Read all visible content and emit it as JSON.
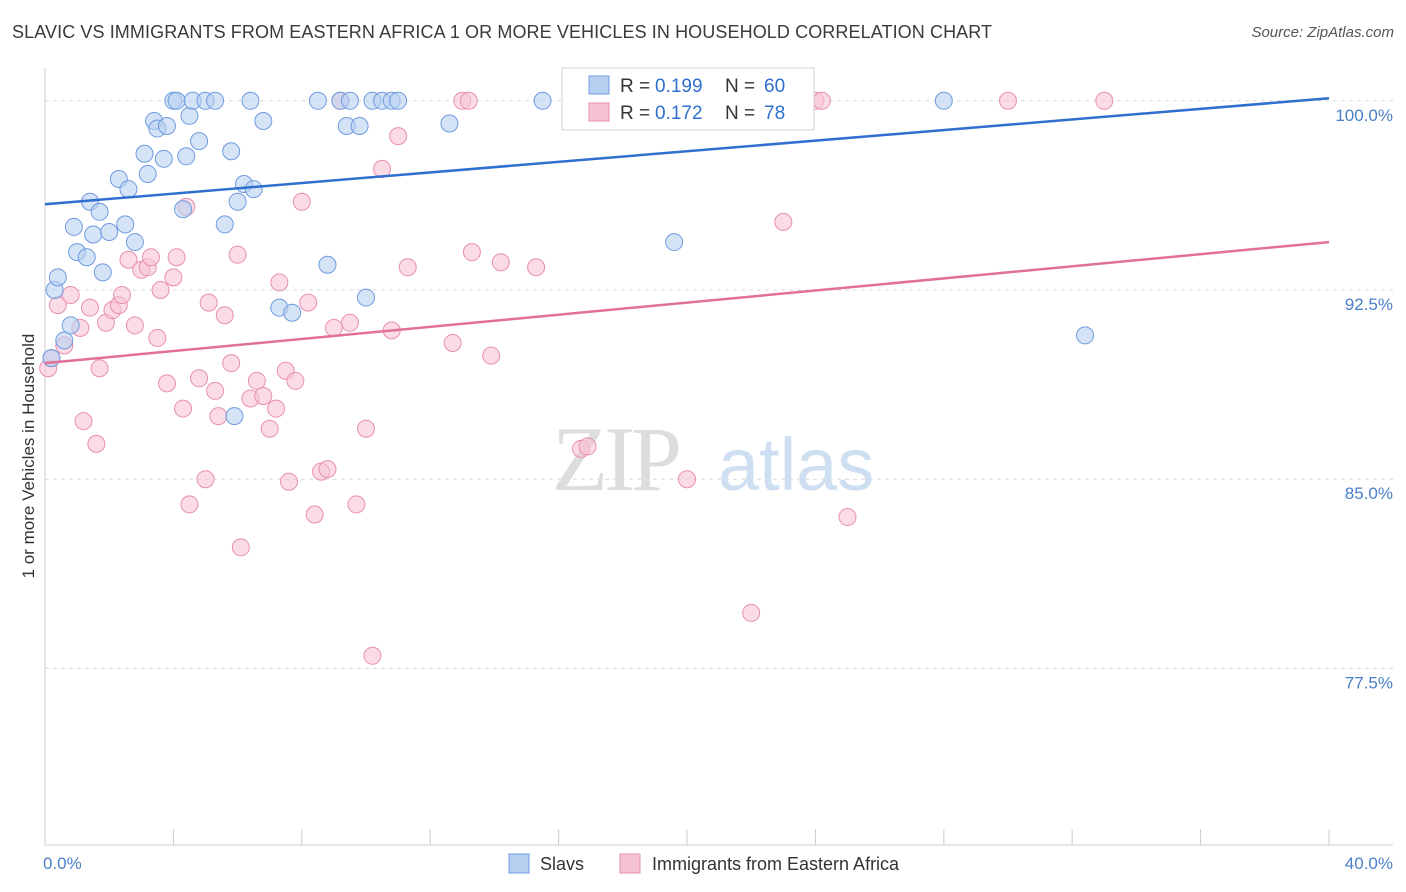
{
  "title": "SLAVIC VS IMMIGRANTS FROM EASTERN AFRICA 1 OR MORE VEHICLES IN HOUSEHOLD CORRELATION CHART",
  "source": "Source: ZipAtlas.com",
  "watermark": {
    "zip": "ZIP",
    "atlas": "atlas"
  },
  "colors": {
    "slavs_fill": "#b8d0f0",
    "slavs_stroke": "#6f9be0",
    "slavs_line": "#2f6fcf",
    "africa_fill": "#f6c3d5",
    "africa_stroke": "#e98fb0",
    "africa_line": "#e0709a",
    "grid": "#d8d8d8",
    "tick_label": "#4a7fc8"
  },
  "chart_data": {
    "type": "scatter",
    "title": "SLAVIC VS IMMIGRANTS FROM EASTERN AFRICA 1 OR MORE VEHICLES IN HOUSEHOLD CORRELATION CHART",
    "xlabel": "",
    "ylabel": "1 or more Vehicles in Household",
    "xlim": [
      0,
      40
    ],
    "ylim": [
      70.5,
      101.3
    ],
    "x_tick_labels": [
      {
        "value": 0,
        "label": "0.0%"
      },
      {
        "value": 40,
        "label": "40.0%"
      }
    ],
    "y_tick_labels": [
      {
        "value": 100,
        "label": "100.0%"
      },
      {
        "value": 92.5,
        "label": "92.5%"
      },
      {
        "value": 85,
        "label": "85.0%"
      },
      {
        "value": 77.5,
        "label": "77.5%"
      }
    ],
    "grid": true,
    "legend": {
      "position": "top-center",
      "entries": [
        {
          "r_label": "R =",
          "r_value": "0.199",
          "n_label": "N =",
          "n_value": "60"
        },
        {
          "r_label": "R =",
          "r_value": "0.172",
          "n_label": "N =",
          "n_value": "78"
        }
      ]
    },
    "series": [
      {
        "name": "Slavs",
        "r": 0.199,
        "n": 60,
        "trend": {
          "x": [
            0,
            40
          ],
          "y": [
            95.9,
            100.1
          ]
        },
        "points": [
          [
            0.2,
            89.8
          ],
          [
            0.3,
            92.5
          ],
          [
            0.4,
            93.0
          ],
          [
            0.6,
            90.5
          ],
          [
            0.8,
            91.1
          ],
          [
            0.9,
            95.0
          ],
          [
            1.0,
            94.0
          ],
          [
            1.3,
            93.8
          ],
          [
            1.4,
            96.0
          ],
          [
            1.5,
            94.7
          ],
          [
            1.7,
            95.6
          ],
          [
            1.8,
            93.2
          ],
          [
            2.0,
            94.8
          ],
          [
            2.3,
            96.9
          ],
          [
            2.5,
            95.1
          ],
          [
            2.6,
            96.5
          ],
          [
            2.8,
            94.4
          ],
          [
            3.1,
            97.9
          ],
          [
            3.2,
            97.1
          ],
          [
            3.4,
            99.2
          ],
          [
            3.5,
            98.9
          ],
          [
            3.7,
            97.7
          ],
          [
            3.8,
            99.0
          ],
          [
            4.0,
            100.0
          ],
          [
            4.1,
            100.0
          ],
          [
            4.4,
            97.8
          ],
          [
            4.5,
            99.4
          ],
          [
            4.6,
            100.0
          ],
          [
            4.8,
            98.4
          ],
          [
            5.0,
            100.0
          ],
          [
            5.3,
            100.0
          ],
          [
            5.6,
            95.1
          ],
          [
            5.8,
            98.0
          ],
          [
            6.0,
            96.0
          ],
          [
            6.2,
            96.7
          ],
          [
            6.4,
            100.0
          ],
          [
            6.5,
            96.5
          ],
          [
            6.8,
            99.2
          ],
          [
            7.3,
            91.8
          ],
          [
            7.7,
            91.6
          ],
          [
            8.5,
            100.0
          ],
          [
            8.8,
            93.5
          ],
          [
            9.2,
            100.0
          ],
          [
            9.4,
            99.0
          ],
          [
            9.5,
            100.0
          ],
          [
            9.8,
            99.0
          ],
          [
            10.0,
            92.2
          ],
          [
            10.2,
            100.0
          ],
          [
            10.5,
            100.0
          ],
          [
            10.8,
            100.0
          ],
          [
            11.0,
            100.0
          ],
          [
            12.6,
            99.1
          ],
          [
            15.5,
            100.0
          ],
          [
            16.4,
            100.0
          ],
          [
            17.5,
            100.0
          ],
          [
            19.6,
            94.4
          ],
          [
            28.0,
            100.0
          ],
          [
            32.4,
            90.7
          ],
          [
            4.3,
            95.7
          ],
          [
            5.9,
            87.5
          ]
        ]
      },
      {
        "name": "Immigrants from Eastern Africa",
        "r": 0.172,
        "n": 78,
        "trend": {
          "x": [
            0,
            40
          ],
          "y": [
            89.6,
            94.4
          ]
        },
        "points": [
          [
            0.1,
            89.4
          ],
          [
            0.2,
            89.8
          ],
          [
            0.4,
            91.9
          ],
          [
            0.6,
            90.3
          ],
          [
            0.8,
            92.3
          ],
          [
            1.1,
            91.0
          ],
          [
            1.2,
            87.3
          ],
          [
            1.4,
            91.8
          ],
          [
            1.6,
            86.4
          ],
          [
            1.7,
            89.4
          ],
          [
            1.9,
            91.2
          ],
          [
            2.1,
            91.7
          ],
          [
            2.3,
            91.9
          ],
          [
            2.4,
            92.3
          ],
          [
            2.6,
            93.7
          ],
          [
            2.8,
            91.1
          ],
          [
            3.0,
            93.3
          ],
          [
            3.2,
            93.4
          ],
          [
            3.3,
            93.8
          ],
          [
            3.5,
            90.6
          ],
          [
            3.6,
            92.5
          ],
          [
            3.8,
            88.8
          ],
          [
            4.0,
            93.0
          ],
          [
            4.1,
            93.8
          ],
          [
            4.3,
            87.8
          ],
          [
            4.4,
            95.8
          ],
          [
            4.5,
            84.0
          ],
          [
            4.8,
            89.0
          ],
          [
            5.0,
            85.0
          ],
          [
            5.1,
            92.0
          ],
          [
            5.3,
            88.5
          ],
          [
            5.4,
            87.5
          ],
          [
            5.6,
            91.5
          ],
          [
            5.8,
            89.6
          ],
          [
            6.0,
            93.9
          ],
          [
            6.1,
            82.3
          ],
          [
            6.4,
            88.2
          ],
          [
            6.6,
            88.9
          ],
          [
            6.8,
            88.3
          ],
          [
            7.0,
            87.0
          ],
          [
            7.2,
            87.8
          ],
          [
            7.3,
            92.8
          ],
          [
            7.5,
            89.3
          ],
          [
            7.6,
            84.9
          ],
          [
            7.8,
            88.9
          ],
          [
            8.0,
            96.0
          ],
          [
            8.2,
            92.0
          ],
          [
            8.4,
            83.6
          ],
          [
            8.6,
            85.3
          ],
          [
            8.8,
            85.4
          ],
          [
            9.0,
            91.0
          ],
          [
            9.2,
            100.0
          ],
          [
            9.5,
            91.2
          ],
          [
            9.7,
            84.0
          ],
          [
            10.0,
            87.0
          ],
          [
            10.2,
            78.0
          ],
          [
            10.5,
            97.3
          ],
          [
            10.8,
            90.9
          ],
          [
            11.0,
            98.6
          ],
          [
            11.3,
            93.4
          ],
          [
            12.7,
            90.4
          ],
          [
            13.0,
            100.0
          ],
          [
            13.2,
            100.0
          ],
          [
            13.3,
            94.0
          ],
          [
            13.9,
            89.9
          ],
          [
            14.2,
            93.6
          ],
          [
            15.3,
            93.4
          ],
          [
            16.7,
            86.2
          ],
          [
            16.9,
            86.3
          ],
          [
            17.6,
            100.0
          ],
          [
            20.0,
            85.0
          ],
          [
            22.0,
            79.7
          ],
          [
            23.0,
            95.2
          ],
          [
            24.0,
            100.0
          ],
          [
            24.2,
            100.0
          ],
          [
            25.0,
            83.5
          ],
          [
            30.0,
            100.0
          ],
          [
            33.0,
            100.0
          ]
        ]
      }
    ]
  },
  "bottom_legend": [
    "Slavs",
    "Immigrants from Eastern Africa"
  ]
}
